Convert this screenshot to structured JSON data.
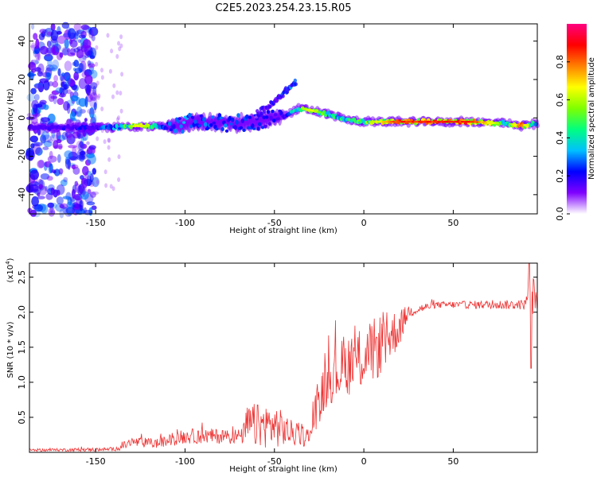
{
  "title": "C2E5.2023.254.23.15.R05",
  "chart_data": [
    {
      "type": "heatmap",
      "name": "spectrogram",
      "xlabel": "Height of straight line (km)",
      "ylabel": "Frequency (Hz)",
      "xlim": [
        -187,
        97
      ],
      "ylim": [
        -50,
        49
      ],
      "xticks": [
        -150,
        -100,
        -50,
        0,
        50
      ],
      "yticks": [
        -40,
        -20,
        0,
        20,
        40
      ],
      "ridge": [
        {
          "x": -187,
          "y": -5,
          "amp": 0.15
        },
        {
          "x": -150,
          "y": -5,
          "amp": 0.25
        },
        {
          "x": -140,
          "y": -5,
          "amp": 0.35
        },
        {
          "x": -125,
          "y": -4,
          "amp": 0.75
        },
        {
          "x": -110,
          "y": -5,
          "amp": 0.3
        },
        {
          "x": -95,
          "y": -2,
          "amp": 0.35
        },
        {
          "x": -75,
          "y": -3,
          "amp": 0.3
        },
        {
          "x": -60,
          "y": -2,
          "amp": 0.25
        },
        {
          "x": -45,
          "y": 1,
          "amp": 0.2
        },
        {
          "x": -36,
          "y": 5,
          "amp": 0.55
        },
        {
          "x": -30,
          "y": 4,
          "amp": 0.7
        },
        {
          "x": -20,
          "y": 2,
          "amp": 0.5
        },
        {
          "x": -10,
          "y": -1,
          "amp": 0.5
        },
        {
          "x": 0,
          "y": -2,
          "amp": 0.55
        },
        {
          "x": 20,
          "y": -2,
          "amp": 0.9
        },
        {
          "x": 60,
          "y": -2,
          "amp": 0.9
        },
        {
          "x": 80,
          "y": -3,
          "amp": 0.5
        },
        {
          "x": 88,
          "y": -4,
          "amp": 0.85
        },
        {
          "x": 97,
          "y": -3,
          "amp": 0.3
        }
      ],
      "branch": [
        {
          "x": -60,
          "y": 2,
          "amp": 0.2
        },
        {
          "x": -50,
          "y": 8,
          "amp": 0.25
        },
        {
          "x": -45,
          "y": 13,
          "amp": 0.3
        },
        {
          "x": -41,
          "y": 16,
          "amp": 0.35
        },
        {
          "x": -38,
          "y": 19,
          "amp": 0.3
        }
      ],
      "noise_region": {
        "x_from": -187,
        "x_to": -150,
        "y_from": -50,
        "y_to": 49,
        "amp": 0.15
      }
    },
    {
      "type": "colorbar",
      "label": "Normalized spectral amplitude",
      "range": [
        0.0,
        1.0
      ],
      "ticks": [
        0.0,
        0.2,
        0.4,
        0.6,
        0.8
      ],
      "colors": [
        "#ffffff",
        "#8000ff",
        "#0000ff",
        "#00c0ff",
        "#00ff80",
        "#80ff00",
        "#ffff00",
        "#ff8000",
        "#ff0000",
        "#ff0080"
      ]
    },
    {
      "type": "line",
      "name": "snr",
      "xlabel": "Height of straight line (km)",
      "ylabel": "SNR (10 * v/v)",
      "multiplier": "(x10",
      "multiplier_exp": "4",
      "multiplier_close": ")",
      "xlim": [
        -187,
        97
      ],
      "ylim": [
        0,
        2.7
      ],
      "xticks": [
        -150,
        -100,
        -50,
        0,
        50
      ],
      "yticks": [
        0.5,
        1.0,
        1.5,
        2.0,
        2.5
      ],
      "ytick_labels": [
        "0.5",
        "1.0",
        "1.5",
        "2.0",
        "2.5"
      ],
      "color": "#ee3333",
      "envelope": [
        {
          "x": -187,
          "base": 0.03,
          "amp": 0.02
        },
        {
          "x": -140,
          "base": 0.04,
          "amp": 0.03
        },
        {
          "x": -135,
          "base": 0.08,
          "amp": 0.06
        },
        {
          "x": -130,
          "base": 0.14,
          "amp": 0.08
        },
        {
          "x": -115,
          "base": 0.12,
          "amp": 0.08
        },
        {
          "x": -100,
          "base": 0.22,
          "amp": 0.12
        },
        {
          "x": -68,
          "base": 0.22,
          "amp": 0.12
        },
        {
          "x": -65,
          "base": 0.35,
          "amp": 0.35
        },
        {
          "x": -50,
          "base": 0.35,
          "amp": 0.35
        },
        {
          "x": -40,
          "base": 0.25,
          "amp": 0.2
        },
        {
          "x": -30,
          "base": 0.2,
          "amp": 0.15
        },
        {
          "x": -28,
          "base": 0.5,
          "amp": 0.3
        },
        {
          "x": -20,
          "base": 1.0,
          "amp": 0.4
        },
        {
          "x": -10,
          "base": 1.2,
          "amp": 0.5
        },
        {
          "x": 0,
          "base": 1.3,
          "amp": 0.5
        },
        {
          "x": 10,
          "base": 1.5,
          "amp": 0.5
        },
        {
          "x": 20,
          "base": 1.75,
          "amp": 0.3
        },
        {
          "x": 25,
          "base": 2.0,
          "amp": 0.1
        },
        {
          "x": 40,
          "base": 2.1,
          "amp": 0.05
        },
        {
          "x": 90,
          "base": 2.1,
          "amp": 0.08
        },
        {
          "x": 93,
          "base": 2.3,
          "amp": 0.4
        },
        {
          "x": 95,
          "base": 2.2,
          "amp": 0.3
        },
        {
          "x": 97,
          "base": 2.2,
          "amp": 0.2
        }
      ]
    }
  ]
}
